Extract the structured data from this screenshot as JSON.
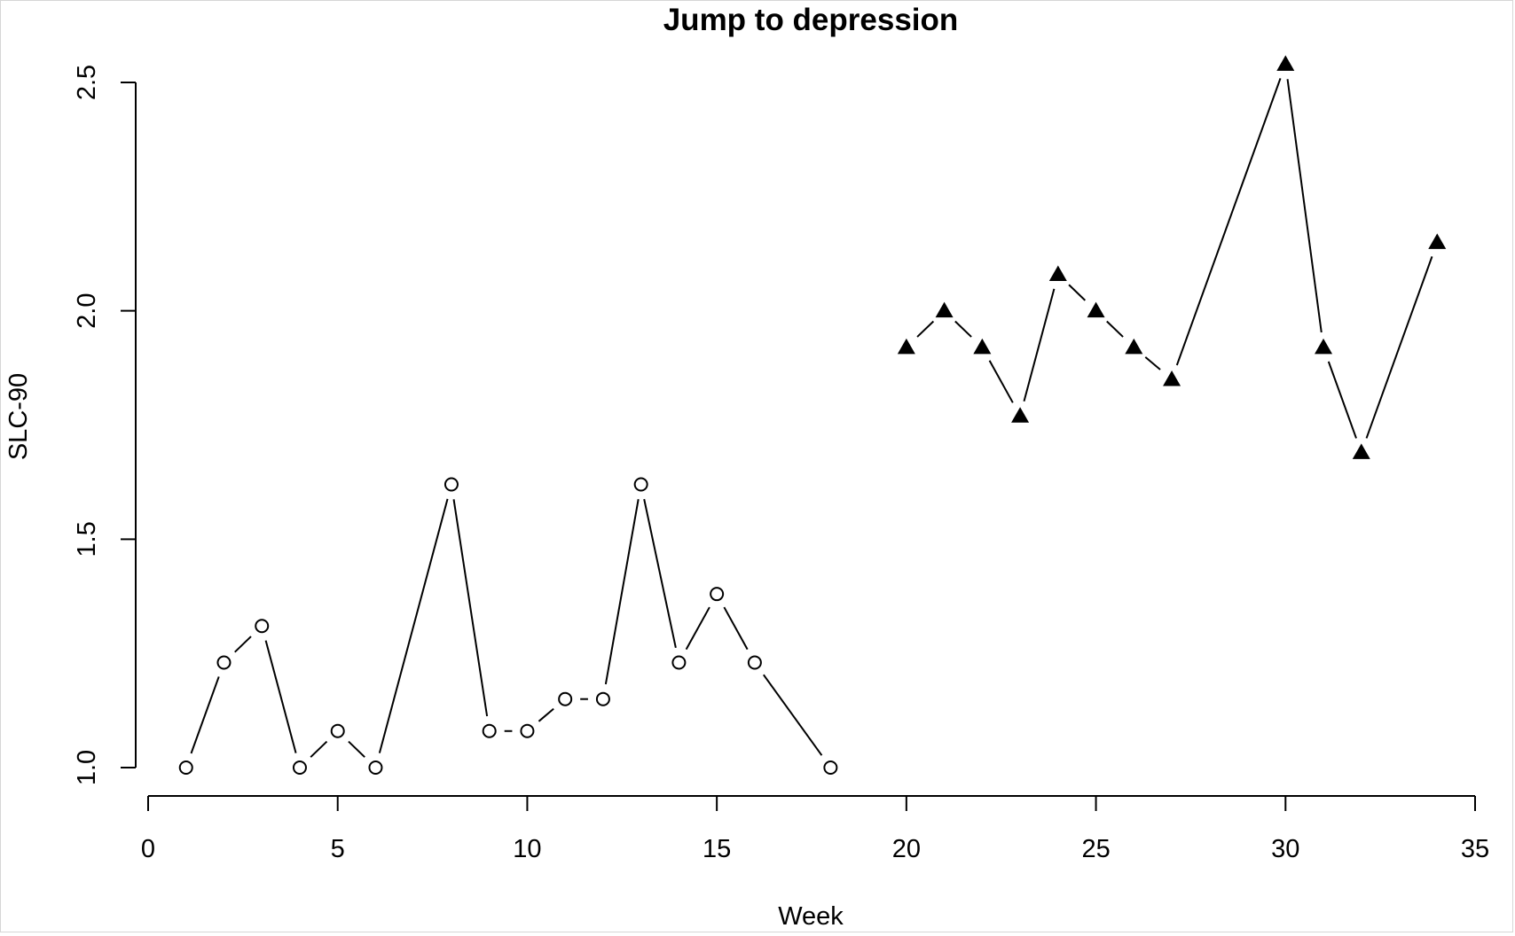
{
  "chart_data": {
    "type": "line",
    "title": "Jump to depression",
    "xlabel": "Week",
    "ylabel": "SLC-90",
    "xlim": [
      0,
      35
    ],
    "ylim": [
      1.0,
      2.5
    ],
    "x_ticks": [
      0,
      5,
      10,
      15,
      20,
      25,
      30,
      35
    ],
    "y_ticks": [
      "1.0",
      "1.5",
      "2.0",
      "2.5"
    ],
    "grid": false,
    "legend": "none",
    "series": [
      {
        "marker": "open-circle",
        "x": [
          1,
          2,
          3,
          4,
          5,
          6,
          8,
          9,
          10,
          11,
          12,
          13,
          14,
          15,
          16,
          18
        ],
        "values": [
          1.0,
          1.23,
          1.31,
          1.0,
          1.08,
          1.0,
          1.62,
          1.08,
          1.08,
          1.15,
          1.15,
          1.62,
          1.23,
          1.38,
          1.23,
          1.0
        ]
      },
      {
        "marker": "filled-triangle",
        "x": [
          20,
          21,
          22,
          23,
          24,
          25,
          26,
          27,
          30,
          31,
          32,
          34
        ],
        "values": [
          1.92,
          2.0,
          1.92,
          1.77,
          2.08,
          2.0,
          1.92,
          1.85,
          2.54,
          1.92,
          1.69,
          2.15
        ]
      }
    ],
    "line_color": "#000000"
  }
}
